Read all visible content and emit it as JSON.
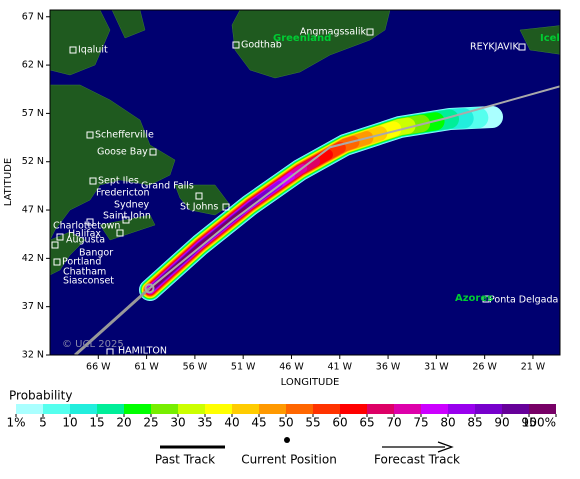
{
  "map": {
    "xlim": [
      -71,
      -18.2
    ],
    "ylim": [
      32,
      67.7
    ],
    "xticks": [
      {
        "value": -66,
        "label": "66 W"
      },
      {
        "value": -61,
        "label": "61 W"
      },
      {
        "value": -56,
        "label": "56 W"
      },
      {
        "value": -51,
        "label": "51 W"
      },
      {
        "value": -46,
        "label": "46 W"
      },
      {
        "value": -41,
        "label": "41 W"
      },
      {
        "value": -36,
        "label": "36 W"
      },
      {
        "value": -31,
        "label": "31 W"
      },
      {
        "value": -26,
        "label": "26 W"
      },
      {
        "value": -21,
        "label": "21 W"
      }
    ],
    "yticks": [
      {
        "value": 32,
        "label": "32 N"
      },
      {
        "value": 37,
        "label": "37 N"
      },
      {
        "value": 42,
        "label": "42 N"
      },
      {
        "value": 47,
        "label": "47 N"
      },
      {
        "value": 52,
        "label": "52 N"
      },
      {
        "value": 57,
        "label": "57 N"
      },
      {
        "value": 62,
        "label": "62 N"
      },
      {
        "value": 67,
        "label": "67 N"
      }
    ],
    "x_label": "LONGITUDE",
    "y_label": "LATITUDE",
    "places": [
      "Iqaluit",
      "Godthab",
      "Angmagssalik",
      "REYKJAVIK",
      "Schefferville",
      "Goose Bay",
      "Sept Iles",
      "Fredericton",
      "Grand Falls",
      "Sydney",
      "Saint John",
      "St Johns",
      "Charlottetown",
      "Halifax",
      "Augusta",
      "Bangor",
      "Portland",
      "Chatham",
      "Siasconset",
      "Ponta Delgada",
      "HAMILTON"
    ],
    "regions": [
      "Greenland",
      "Icel",
      "Azores"
    ],
    "copyright": "© UCL 2025",
    "past_track": {
      "lon": [
        -68.4,
        -60.7
      ],
      "lat": [
        32,
        38.9
      ]
    },
    "current_position": {
      "lon": -60.7,
      "lat": 38.9
    },
    "forecast_track": {
      "lon": [
        -60.7,
        -52,
        -42,
        -30,
        -18.2
      ],
      "lat": [
        38.9,
        46,
        53.5,
        56.5,
        59.8
      ]
    }
  },
  "legend": {
    "title": "Probability",
    "ticks": [
      {
        "value": 1,
        "label": "1%"
      },
      5,
      10,
      15,
      20,
      25,
      30,
      35,
      40,
      45,
      50,
      55,
      60,
      65,
      70,
      75,
      80,
      85,
      90,
      95,
      {
        "value": 100,
        "label": "100%"
      }
    ],
    "colors": [
      "#aaffff",
      "#55ffee",
      "#22eedd",
      "#00ee99",
      "#00ff00",
      "#77ee00",
      "#ccff00",
      "#ffff00",
      "#ffcc00",
      "#ff9900",
      "#ff6600",
      "#ff3300",
      "#ff0000",
      "#dd0066",
      "#dd00aa",
      "#cc00ff",
      "#9900ee",
      "#7700cc",
      "#660099",
      "#770066"
    ],
    "items": [
      "Past Track",
      "Current Position",
      "Forecast Track"
    ]
  }
}
